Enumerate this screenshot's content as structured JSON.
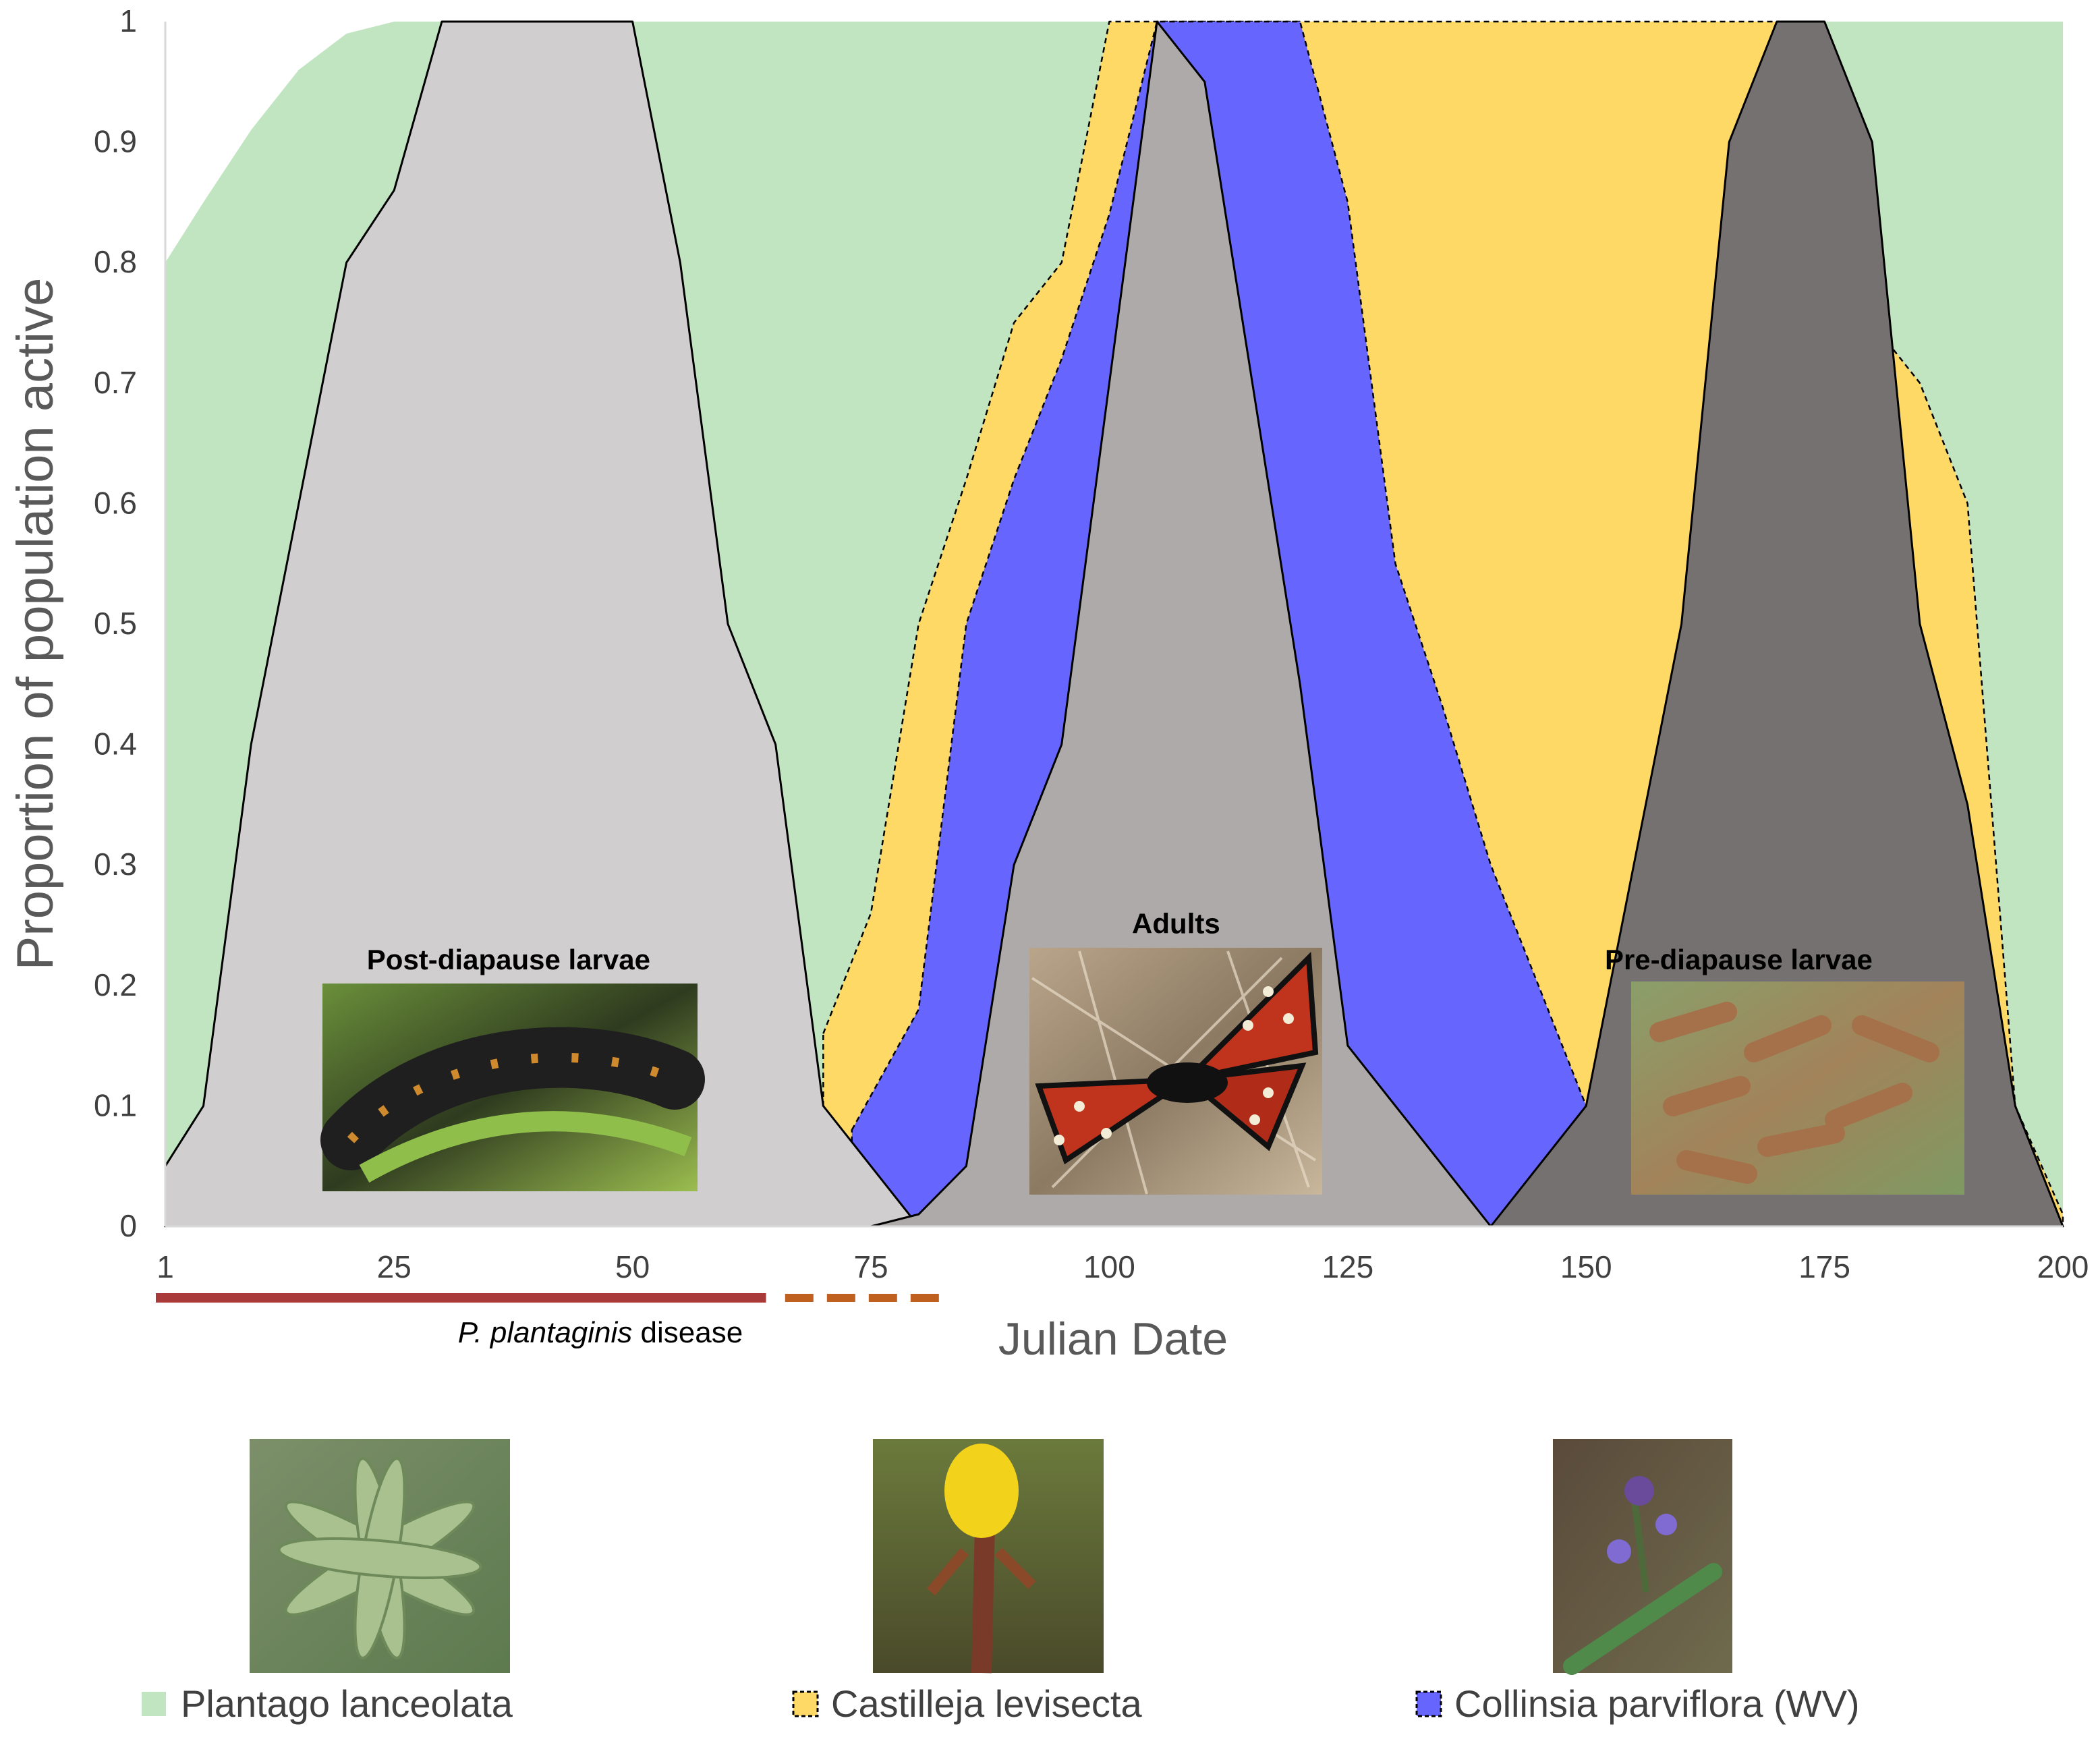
{
  "chart_data": {
    "type": "area",
    "xlabel": "Julian Date",
    "ylabel": "Proportion of population active",
    "xlim": [
      1,
      200
    ],
    "ylim": [
      0,
      1
    ],
    "x_ticks": [
      "1",
      "25",
      "50",
      "75",
      "100",
      "125",
      "150",
      "175",
      "200"
    ],
    "y_ticks": [
      "0",
      "0.1",
      "0.2",
      "0.3",
      "0.4",
      "0.5",
      "0.6",
      "0.7",
      "0.8",
      "0.9",
      "1"
    ],
    "grid": false,
    "series": [
      {
        "name": "Plantago lanceolata",
        "role": "host plant",
        "color": "#c1e4c1",
        "outline": "none",
        "points": [
          [
            1,
            0.8
          ],
          [
            5,
            0.85
          ],
          [
            10,
            0.91
          ],
          [
            15,
            0.96
          ],
          [
            20,
            0.99
          ],
          [
            25,
            1.0
          ],
          [
            200,
            1.0
          ],
          [
            200,
            0
          ]
        ]
      },
      {
        "name": "Castilleja levisecta",
        "role": "host plant",
        "color": "#ffd966",
        "outline": "dashed",
        "points": [
          [
            70,
            0.16
          ],
          [
            75,
            0.26
          ],
          [
            80,
            0.5
          ],
          [
            85,
            0.62
          ],
          [
            90,
            0.75
          ],
          [
            95,
            0.8
          ],
          [
            100,
            1.0
          ],
          [
            105,
            1.0
          ],
          [
            110,
            1.0
          ],
          [
            115,
            1.0
          ],
          [
            120,
            1.0
          ],
          [
            170,
            1.0
          ],
          [
            175,
            1.0
          ],
          [
            180,
            0.75
          ],
          [
            185,
            0.7
          ],
          [
            190,
            0.6
          ],
          [
            195,
            0.1
          ],
          [
            200,
            0.01
          ]
        ]
      },
      {
        "name": "Collinsia parviflora (WV)",
        "role": "host plant",
        "color": "#6666ff",
        "outline": "dashed",
        "points": [
          [
            73,
            0.08
          ],
          [
            80,
            0.18
          ],
          [
            85,
            0.5
          ],
          [
            90,
            0.62
          ],
          [
            95,
            0.72
          ],
          [
            100,
            0.84
          ],
          [
            105,
            1.0
          ],
          [
            110,
            1.0
          ],
          [
            115,
            1.0
          ],
          [
            120,
            1.0
          ],
          [
            125,
            0.85
          ],
          [
            130,
            0.55
          ],
          [
            135,
            0.43
          ],
          [
            140,
            0.3
          ],
          [
            150,
            0.1
          ],
          [
            140,
            0.0
          ],
          [
            135,
            0.0
          ]
        ]
      },
      {
        "name": "Post-diapause larvae",
        "role": "butterfly stage",
        "color": "#d0cece",
        "outline": "solid",
        "points": [
          [
            1,
            0.05
          ],
          [
            5,
            0.1
          ],
          [
            10,
            0.4
          ],
          [
            20,
            0.8
          ],
          [
            25,
            0.86
          ],
          [
            30,
            1.0
          ],
          [
            50,
            1.0
          ],
          [
            55,
            0.8
          ],
          [
            60,
            0.5
          ],
          [
            65,
            0.4
          ],
          [
            70,
            0.1
          ],
          [
            80,
            0.0
          ]
        ]
      },
      {
        "name": "Adults",
        "role": "butterfly stage",
        "color": "#aeaaaa",
        "outline": "solid",
        "points": [
          [
            75,
            0.0
          ],
          [
            80,
            0.01
          ],
          [
            85,
            0.05
          ],
          [
            90,
            0.3
          ],
          [
            95,
            0.4
          ],
          [
            100,
            0.7
          ],
          [
            105,
            1.0
          ],
          [
            110,
            0.95
          ],
          [
            115,
            0.7
          ],
          [
            120,
            0.45
          ],
          [
            125,
            0.15
          ],
          [
            130,
            0.1
          ],
          [
            135,
            0.05
          ],
          [
            140,
            0.0
          ]
        ]
      },
      {
        "name": "Pre-diapause larvae",
        "role": "butterfly stage",
        "color": "#767171",
        "outline": "solid",
        "points": [
          [
            140,
            0.0
          ],
          [
            145,
            0.05
          ],
          [
            150,
            0.1
          ],
          [
            155,
            0.3
          ],
          [
            160,
            0.5
          ],
          [
            165,
            0.9
          ],
          [
            170,
            1.0
          ],
          [
            175,
            1.0
          ],
          [
            180,
            0.9
          ],
          [
            185,
            0.5
          ],
          [
            190,
            0.35
          ],
          [
            195,
            0.1
          ],
          [
            200,
            0.0
          ]
        ]
      }
    ],
    "stage_labels": [
      {
        "text": "Post-diapause larvae",
        "x": 37,
        "y": 0.22
      },
      {
        "text": "Adults",
        "x": 107,
        "y": 0.25
      },
      {
        "text": "Pre-diapause larvae",
        "x": 166,
        "y": 0.22
      }
    ],
    "stage_photos": [
      {
        "subject": "caterpillar",
        "x_from": 18,
        "x_to": 57
      },
      {
        "subject": "checkerspot butterfly",
        "x_from": 92,
        "x_to": 123
      },
      {
        "subject": "larvae cluster",
        "x_from": 155,
        "x_to": 190
      }
    ],
    "disease_bar": {
      "italic": "P. plantaginis",
      "rest": " disease",
      "solid_range": [
        1,
        64
      ],
      "dashed_range": [
        66,
        83
      ],
      "color": "#a93a3a",
      "dashed_color": "#c0601f"
    },
    "legend": {
      "placement": "bottom",
      "items": [
        {
          "label": "Plantago lanceolata",
          "color": "#c1e4c1",
          "border": "none"
        },
        {
          "label": "Castilleja levisecta",
          "color": "#ffd966",
          "border": "dashed"
        },
        {
          "label": "Collinsia parviflora (WV)",
          "color": "#6666ff",
          "border": "dashed"
        }
      ]
    }
  }
}
